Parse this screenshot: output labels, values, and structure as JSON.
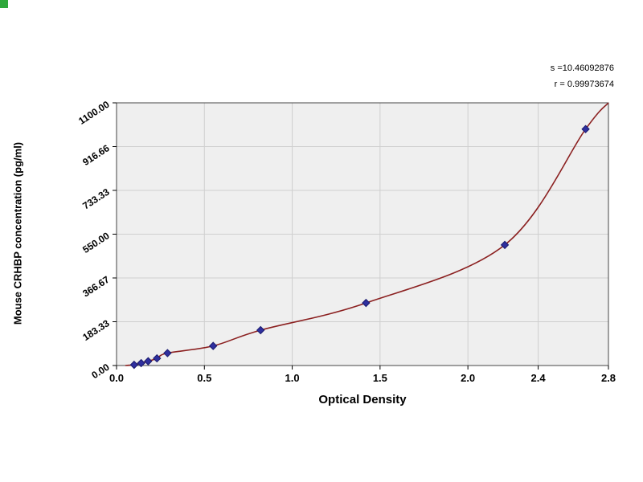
{
  "page": {
    "background": "#ffffff"
  },
  "corner_marker": {
    "color": "#2fa83c"
  },
  "stats": {
    "line1": "s =10.46092876",
    "line2": "r = 0.99973674"
  },
  "chart_data": {
    "type": "scatter",
    "title": "",
    "xlabel": "Optical Density",
    "ylabel": "Mouse CRHBP concentration (pg/ml)",
    "xlim": [
      0,
      2.8
    ],
    "ylim": [
      0,
      1100
    ],
    "grid": true,
    "legend": "none",
    "plot_bg": "#efefef",
    "grid_color": "#cfcfcf",
    "point_color": "#2f2f9e",
    "point_stroke": "#1a1a6e",
    "x_ticks": [
      {
        "v": 0.0,
        "label": "0.0"
      },
      {
        "v": 0.5,
        "label": "0.5"
      },
      {
        "v": 1.0,
        "label": "1.0"
      },
      {
        "v": 1.5,
        "label": "1.5"
      },
      {
        "v": 2.0,
        "label": "2.0"
      },
      {
        "v": 2.4,
        "label": "2.4"
      },
      {
        "v": 2.8,
        "label": "2.8"
      }
    ],
    "y_ticks": [
      {
        "v": 0,
        "label": "0.00"
      },
      {
        "v": 183.33,
        "label": "183.33"
      },
      {
        "v": 366.67,
        "label": "366.67"
      },
      {
        "v": 550,
        "label": "550.00"
      },
      {
        "v": 733.33,
        "label": "733.33"
      },
      {
        "v": 916.66,
        "label": "916.66"
      },
      {
        "v": 1100,
        "label": "1100.00"
      }
    ],
    "points": [
      {
        "od": 0.1,
        "conc": 3
      },
      {
        "od": 0.14,
        "conc": 10
      },
      {
        "od": 0.18,
        "conc": 18
      },
      {
        "od": 0.23,
        "conc": 30
      },
      {
        "od": 0.29,
        "conc": 52
      },
      {
        "od": 0.55,
        "conc": 82
      },
      {
        "od": 0.82,
        "conc": 148
      },
      {
        "od": 1.42,
        "conc": 262
      },
      {
        "od": 2.21,
        "conc": 505
      },
      {
        "od": 2.67,
        "conc": 990
      }
    ],
    "curve": {
      "color": "#8b2020",
      "start": {
        "od": 0.05,
        "conc": 0
      },
      "end": {
        "od": 2.8,
        "conc": 1100
      }
    }
  }
}
